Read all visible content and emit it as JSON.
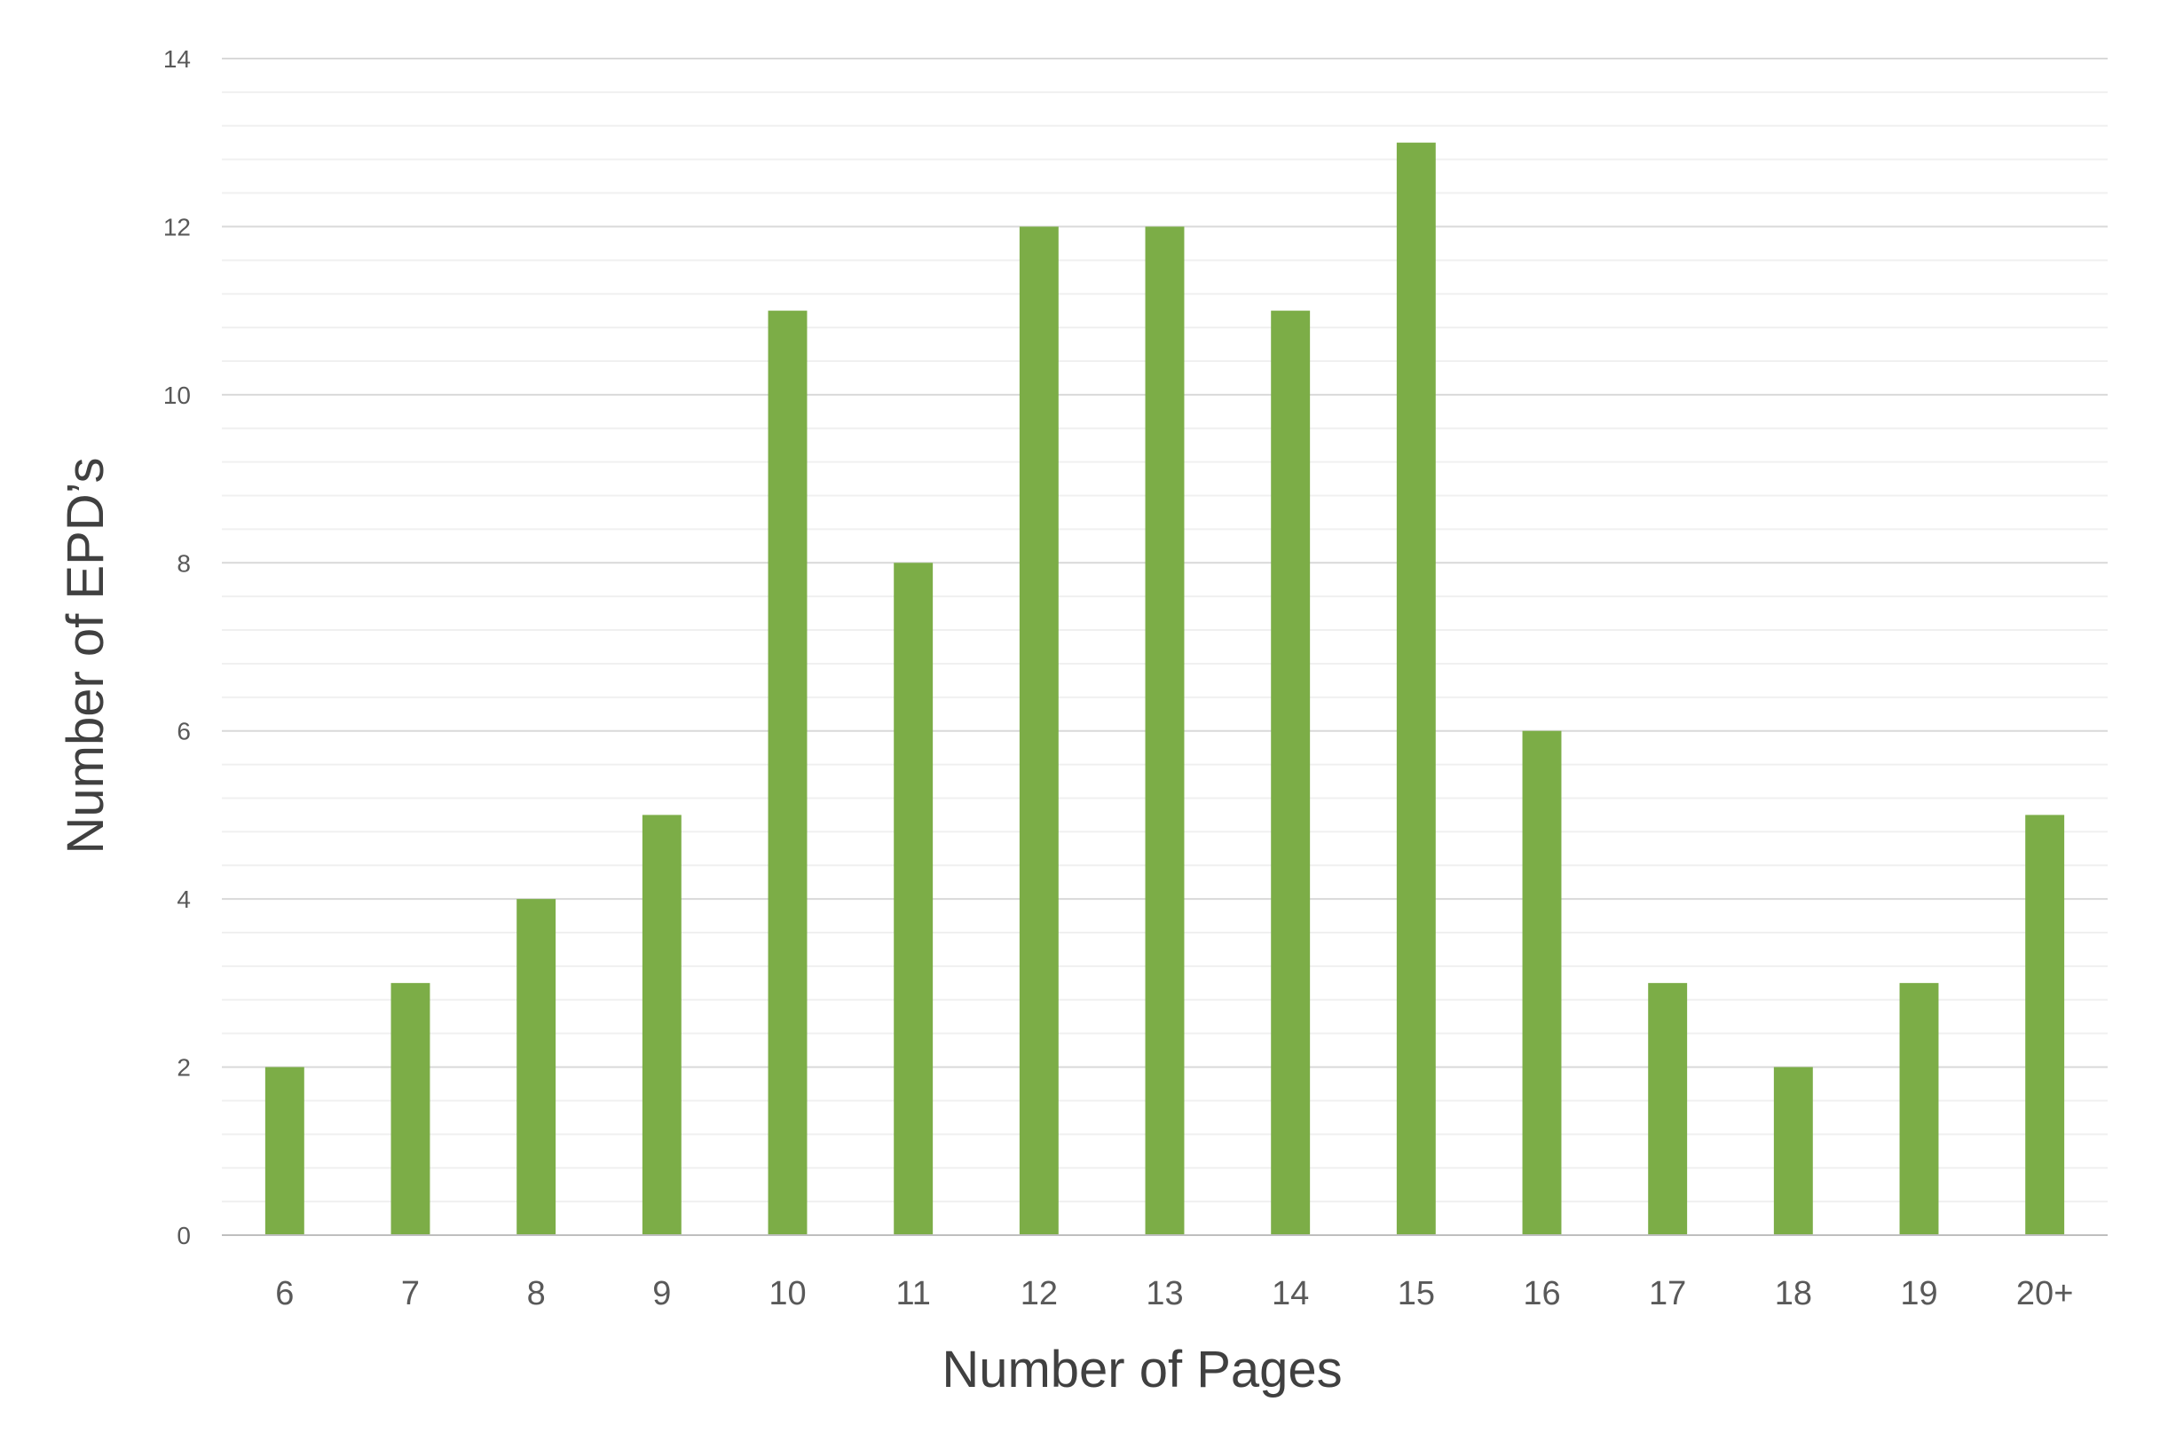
{
  "chart_data": {
    "type": "bar",
    "title": "",
    "xlabel": "Number of Pages",
    "ylabel": "Number of EPD’s",
    "categories": [
      "6",
      "7",
      "8",
      "9",
      "10",
      "11",
      "12",
      "13",
      "14",
      "15",
      "16",
      "17",
      "18",
      "19",
      "20+"
    ],
    "series": [
      {
        "values": [
          2,
          3,
          4,
          5,
          11,
          8,
          12,
          12,
          11,
          13,
          6,
          3,
          2,
          3,
          5
        ]
      }
    ],
    "ylim": [
      0,
      14
    ],
    "yticks": [
      0,
      2,
      4,
      6,
      8,
      10,
      12,
      14
    ],
    "minor_gridlines_per_major": 5,
    "grid": true,
    "legend": "none",
    "colors": {
      "bar": "#7CAD47",
      "major_grid": "#D9D9D9",
      "minor_grid": "#F0F0F0",
      "axis": "#BFBFBF",
      "tick_text": "#595959",
      "title_text": "#404040"
    }
  }
}
